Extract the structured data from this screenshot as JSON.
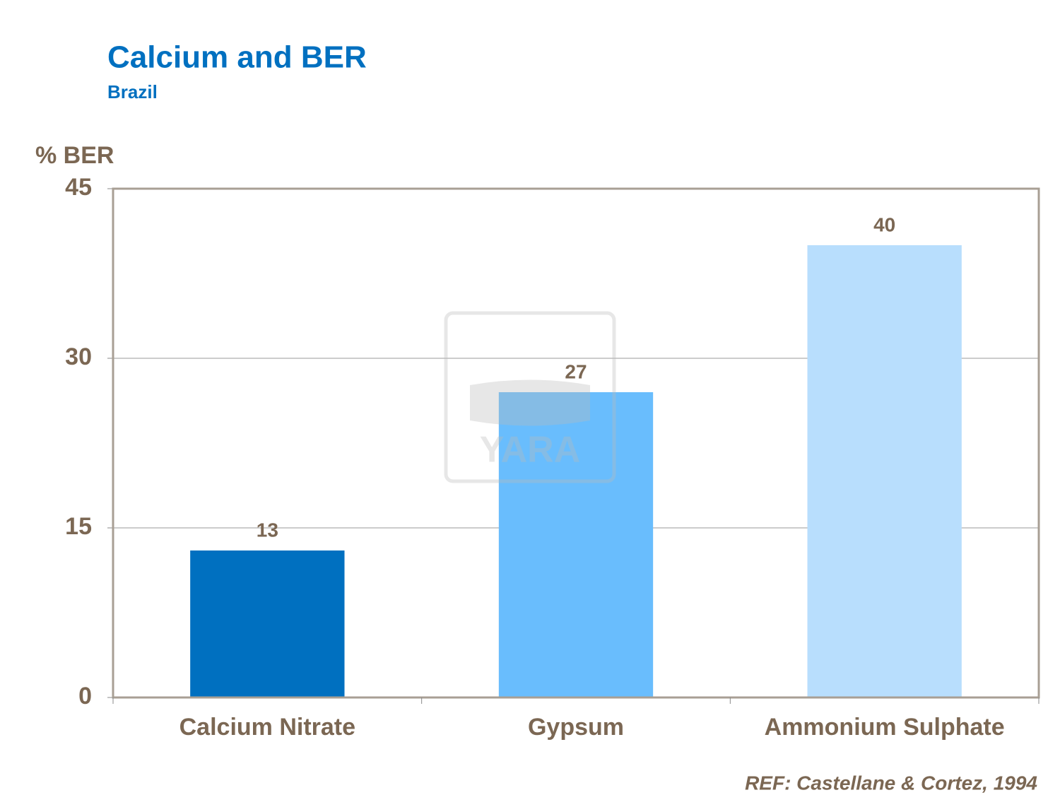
{
  "chart_data": {
    "type": "bar",
    "title": "Calcium and BER",
    "subtitle": "Brazil",
    "y_label": "% BER",
    "categories": [
      "Calcium Nitrate",
      "Gypsum",
      "Ammonium Sulphate"
    ],
    "values": [
      13,
      27,
      40
    ],
    "colors": [
      "#0070c0",
      "#69bdfd",
      "#b8defd"
    ],
    "ylim": [
      0,
      45
    ],
    "yticks": [
      0,
      15,
      30,
      45
    ],
    "grid": true,
    "source": "REF: Castellane & Cortez, 1994",
    "watermark": "YARA"
  }
}
